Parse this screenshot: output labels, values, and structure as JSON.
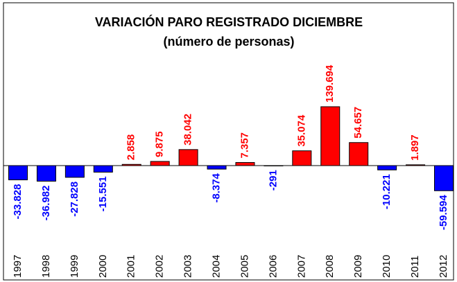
{
  "chart_data": {
    "type": "bar",
    "title": "VARIACIÓN PARO REGISTRADO DICIEMBRE",
    "subtitle": "(número de personas)",
    "categories": [
      "1997",
      "1998",
      "1999",
      "2000",
      "2001",
      "2002",
      "2003",
      "2004",
      "2005",
      "2006",
      "2007",
      "2008",
      "2009",
      "2010",
      "2011",
      "2012"
    ],
    "values": [
      -33828,
      -36982,
      -27828,
      -15551,
      2858,
      9875,
      38042,
      -8374,
      7357,
      -291,
      35074,
      139694,
      54657,
      -10221,
      1897,
      -59594
    ],
    "value_labels": [
      "-33.828",
      "-36.982",
      "-27.828",
      "-15.551",
      "2.858",
      "9.875",
      "38.042",
      "-8.374",
      "7.357",
      "-291",
      "35.074",
      "139.694",
      "54.657",
      "-10.221",
      "1.897",
      "-59.594"
    ],
    "positive_color": "#ff0000",
    "negative_color": "#0000ff"
  }
}
